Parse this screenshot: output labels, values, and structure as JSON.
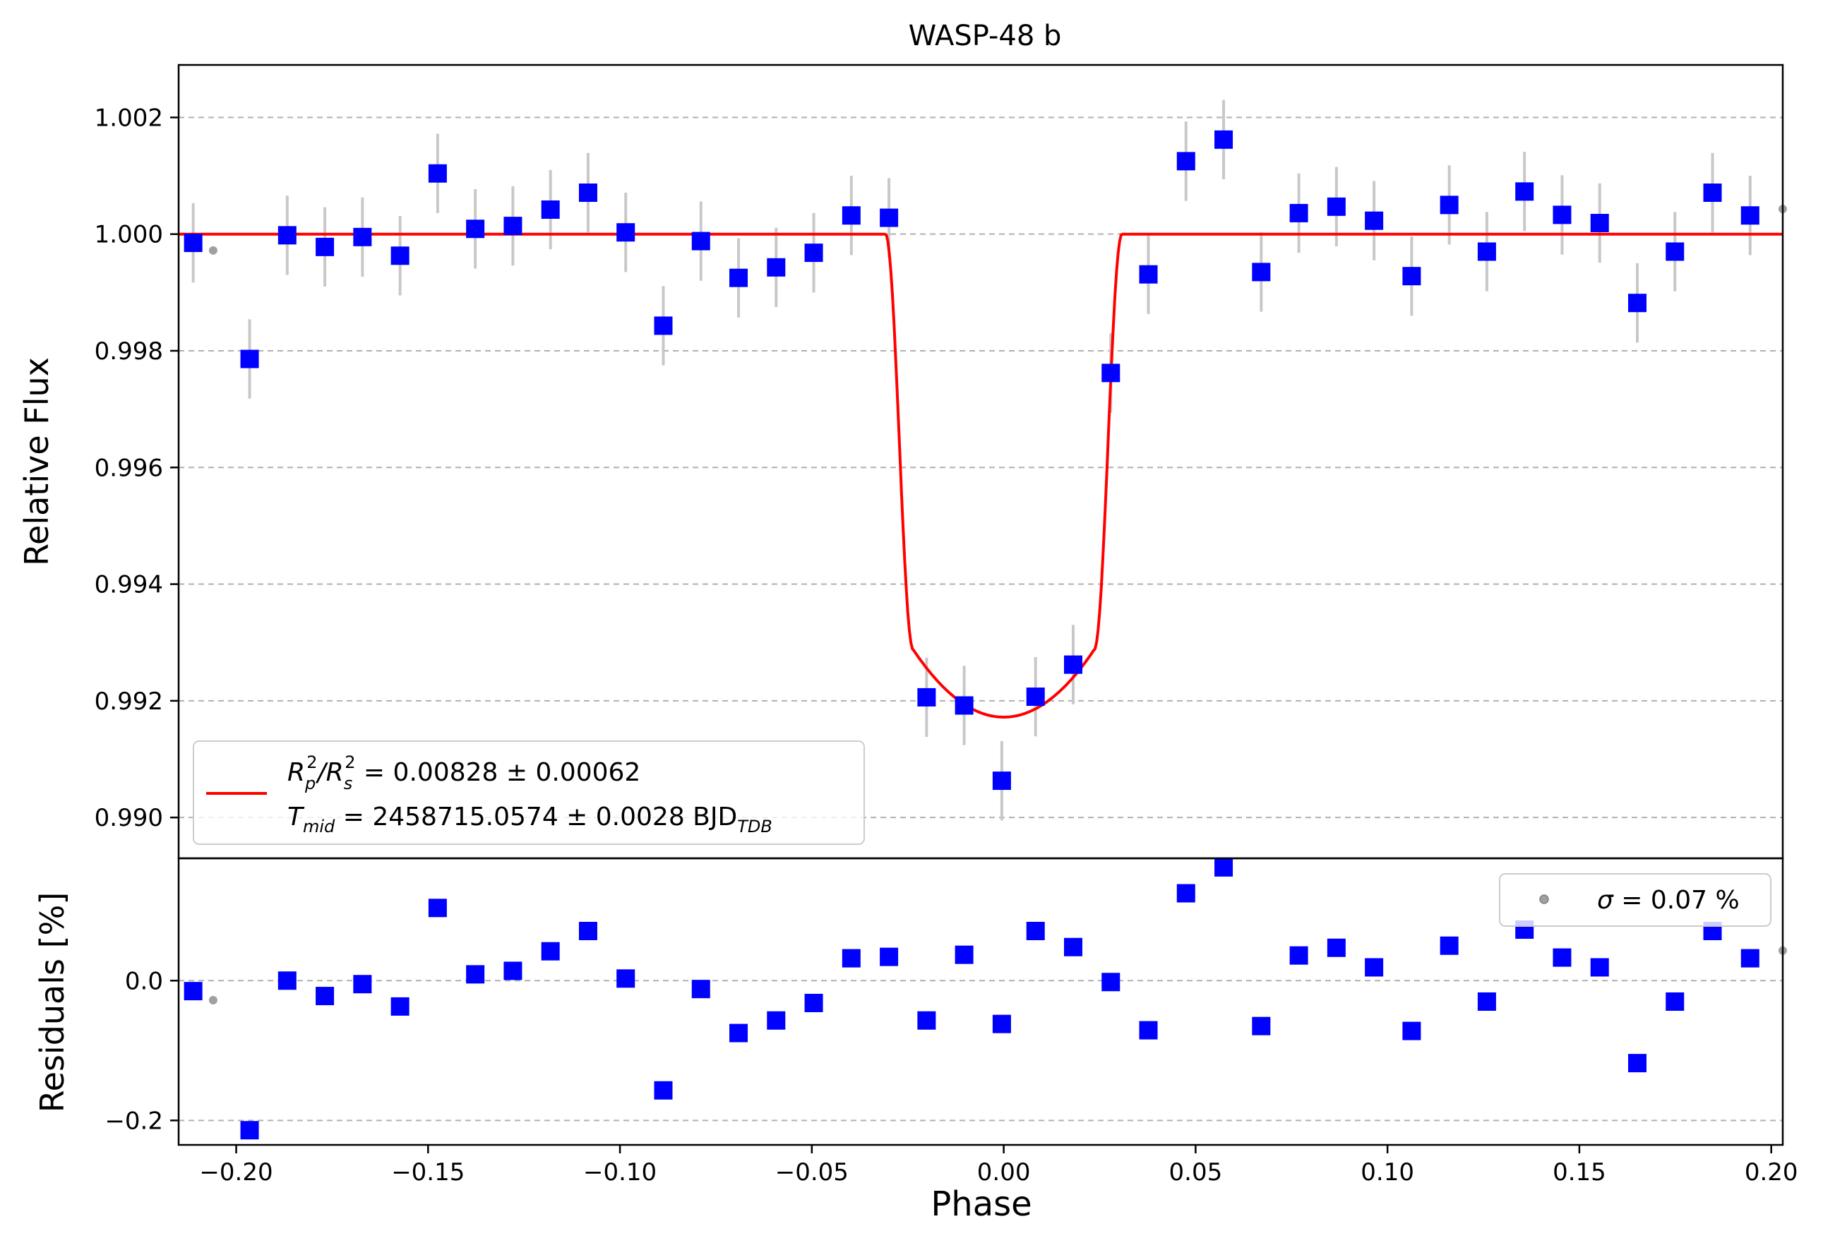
{
  "chart_data": [
    {
      "panel": "main",
      "type": "scatter",
      "title": "WASP-48 b",
      "xlabel": "Phase",
      "ylabel": "Relative Flux",
      "xlim": [
        -0.215,
        0.203
      ],
      "ylim": [
        0.9893,
        1.0029
      ],
      "grid": "horizontal dashed",
      "xticks": [
        -0.2,
        -0.15,
        -0.1,
        -0.05,
        0.0,
        0.05,
        0.1,
        0.15,
        0.2
      ],
      "yticks": [
        0.99,
        0.992,
        0.994,
        0.996,
        0.998,
        1.0,
        1.002
      ],
      "yticklabels": [
        "0.990",
        "0.992",
        "0.994",
        "0.996",
        "0.998",
        "1.000",
        "1.002"
      ],
      "legend_position": "lower-left",
      "legend": {
        "line1": {
          "base": "R",
          "sub1": "p",
          "sup1": "2",
          "slash": "/R",
          "sub2": "s",
          "sup2": "2",
          "value": " = 0.00828 ± 0.00062"
        },
        "line2": {
          "base": "T",
          "sub1": "mid",
          "value": " = 2458715.0574 ± 0.0028 BJD",
          "sub2": "TDB"
        }
      },
      "series": [
        {
          "kind": "raw",
          "marker": "circle",
          "color": "#a0a0a0",
          "x": [
            -0.206,
            0.203
          ],
          "y": [
            0.99972,
            1.00043
          ]
        },
        {
          "kind": "binned",
          "marker": "square",
          "color": "#0000ff",
          "errorbar_color": "#c8c8c8",
          "error": 0.00068,
          "x": [
            -0.2112,
            -0.1965,
            -0.1867,
            -0.1769,
            -0.1671,
            -0.1573,
            -0.1475,
            -0.1377,
            -0.1279,
            -0.1181,
            -0.1083,
            -0.0985,
            -0.0887,
            -0.0789,
            -0.0691,
            -0.0593,
            -0.0495,
            -0.0397,
            -0.0299,
            -0.0201,
            -0.0103,
            -0.0005,
            0.0083,
            0.0181,
            0.0279,
            0.0377,
            0.0475,
            0.0573,
            0.0671,
            0.0769,
            0.0867,
            0.0965,
            0.1063,
            0.1161,
            0.1259,
            0.1357,
            0.1455,
            0.1553,
            0.1651,
            0.1749,
            0.1847,
            0.1945
          ],
          "y": [
            0.99985,
            0.99786,
            0.99998,
            0.99978,
            0.99995,
            0.99963,
            1.00104,
            1.00009,
            1.00014,
            1.00042,
            1.00071,
            1.00003,
            0.99843,
            0.99988,
            0.99925,
            0.99943,
            0.99968,
            1.00032,
            1.00028,
            0.99206,
            0.99192,
            0.99063,
            0.99207,
            0.99262,
            0.99762,
            0.99931,
            1.00125,
            1.00162,
            0.99935,
            1.00036,
            1.00047,
            1.00023,
            0.99928,
            1.0005,
            0.9997,
            1.00073,
            1.00033,
            1.00019,
            0.99882,
            0.9997,
            1.00071,
            1.00032
          ]
        },
        {
          "kind": "model",
          "marker": "line",
          "color": "#ff0000",
          "transit_depth": 0.00828,
          "t_mid": 0.0,
          "t14_half_width": 0.0308,
          "t23_half_width": 0.0236,
          "baseline": 1.0
        }
      ]
    },
    {
      "panel": "residuals",
      "type": "scatter",
      "xlabel": "Phase",
      "ylabel": "Residuals [%]",
      "xlim": [
        -0.215,
        0.203
      ],
      "ylim": [
        -0.235,
        0.175
      ],
      "grid": "horizontal dashed",
      "xticks": [
        -0.2,
        -0.15,
        -0.1,
        -0.05,
        0.0,
        0.05,
        0.1,
        0.15,
        0.2
      ],
      "xticklabels": [
        "−0.20",
        "−0.15",
        "−0.10",
        "−0.05",
        "0.00",
        "0.05",
        "0.10",
        "0.15",
        "0.20"
      ],
      "yticks": [
        -0.2,
        0.0
      ],
      "yticklabels": [
        "−0.2",
        "0.0"
      ],
      "legend_position": "upper-right",
      "legend": {
        "symbol": "σ",
        "value": " = 0.07 %"
      },
      "series": [
        {
          "kind": "raw",
          "marker": "circle",
          "color": "#a0a0a0",
          "x": [
            -0.206,
            0.203
          ],
          "y": [
            -0.028,
            0.043
          ]
        },
        {
          "kind": "binned",
          "marker": "square",
          "color": "#0000ff",
          "x": [
            -0.2112,
            -0.1965,
            -0.1867,
            -0.1769,
            -0.1671,
            -0.1573,
            -0.1475,
            -0.1377,
            -0.1279,
            -0.1181,
            -0.1083,
            -0.0985,
            -0.0887,
            -0.0789,
            -0.0691,
            -0.0593,
            -0.0495,
            -0.0397,
            -0.0299,
            -0.0201,
            -0.0103,
            -0.0005,
            0.0083,
            0.0181,
            0.0279,
            0.0377,
            0.0475,
            0.0573,
            0.0671,
            0.0769,
            0.0867,
            0.0965,
            0.1063,
            0.1161,
            0.1259,
            0.1357,
            0.1455,
            0.1553,
            0.1651,
            0.1749,
            0.1847,
            0.1945
          ],
          "y": [
            -0.015,
            -0.214,
            0.0,
            -0.022,
            -0.005,
            -0.037,
            0.104,
            0.009,
            0.014,
            0.042,
            0.071,
            0.003,
            -0.157,
            -0.012,
            -0.075,
            -0.057,
            -0.032,
            0.032,
            0.034,
            -0.057,
            0.037,
            -0.062,
            0.071,
            0.048,
            -0.002,
            -0.071,
            0.125,
            0.162,
            -0.065,
            0.036,
            0.047,
            0.019,
            -0.072,
            0.05,
            -0.03,
            0.073,
            0.033,
            0.019,
            -0.118,
            -0.03,
            0.071,
            0.032
          ]
        }
      ]
    }
  ]
}
